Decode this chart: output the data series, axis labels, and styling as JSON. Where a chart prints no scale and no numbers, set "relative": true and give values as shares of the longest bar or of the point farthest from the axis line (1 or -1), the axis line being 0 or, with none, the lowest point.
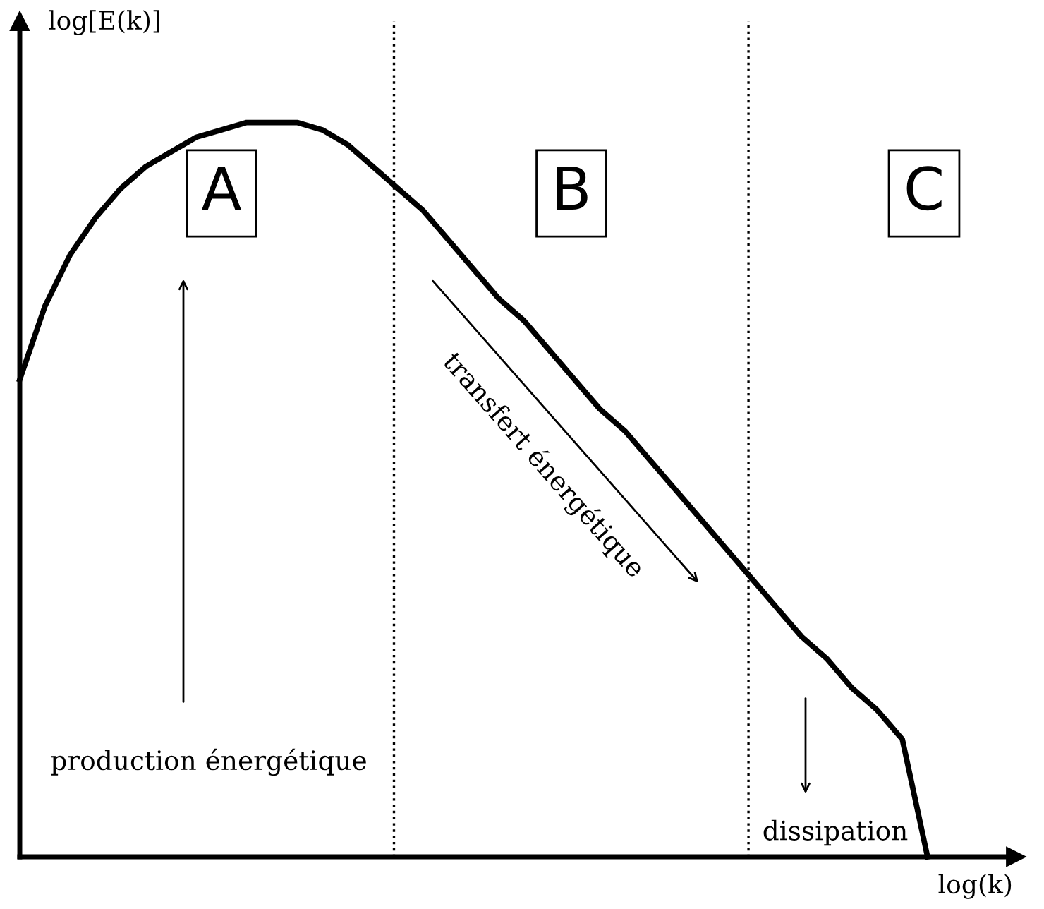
{
  "chart_data": {
    "type": "line",
    "relative": true,
    "xlabel": "log(k)",
    "ylabel": "log[E(k)]",
    "categories": [
      null,
      null,
      null,
      null,
      null,
      null,
      null,
      null,
      null,
      null,
      null,
      null,
      null,
      null,
      null,
      null,
      null,
      null,
      null,
      null,
      null,
      null,
      null,
      null,
      null,
      null,
      null,
      null,
      null,
      null,
      null,
      null,
      null,
      null,
      null,
      null,
      null,
      null,
      null,
      null
    ],
    "series": [
      {
        "color": "#000000",
        "values": [
          0.65,
          0.75,
          0.82,
          0.87,
          0.91,
          0.94,
          0.96,
          0.98,
          0.99,
          1.0,
          1.0,
          1.0,
          0.99,
          0.97,
          0.94,
          0.91,
          0.88,
          0.84,
          0.8,
          0.76,
          0.73,
          0.69,
          0.65,
          0.61,
          0.58,
          0.54,
          0.5,
          0.46,
          0.42,
          0.38,
          0.34,
          0.3,
          0.27,
          0.23,
          0.2,
          0.16,
          0,
          null,
          null,
          null
        ]
      }
    ],
    "annotations": [
      "A",
      "B",
      "C",
      "production énergétique",
      "transfert énergétique",
      "dissipation"
    ],
    "grid": false,
    "marker": "none",
    "line_style": "solid"
  }
}
